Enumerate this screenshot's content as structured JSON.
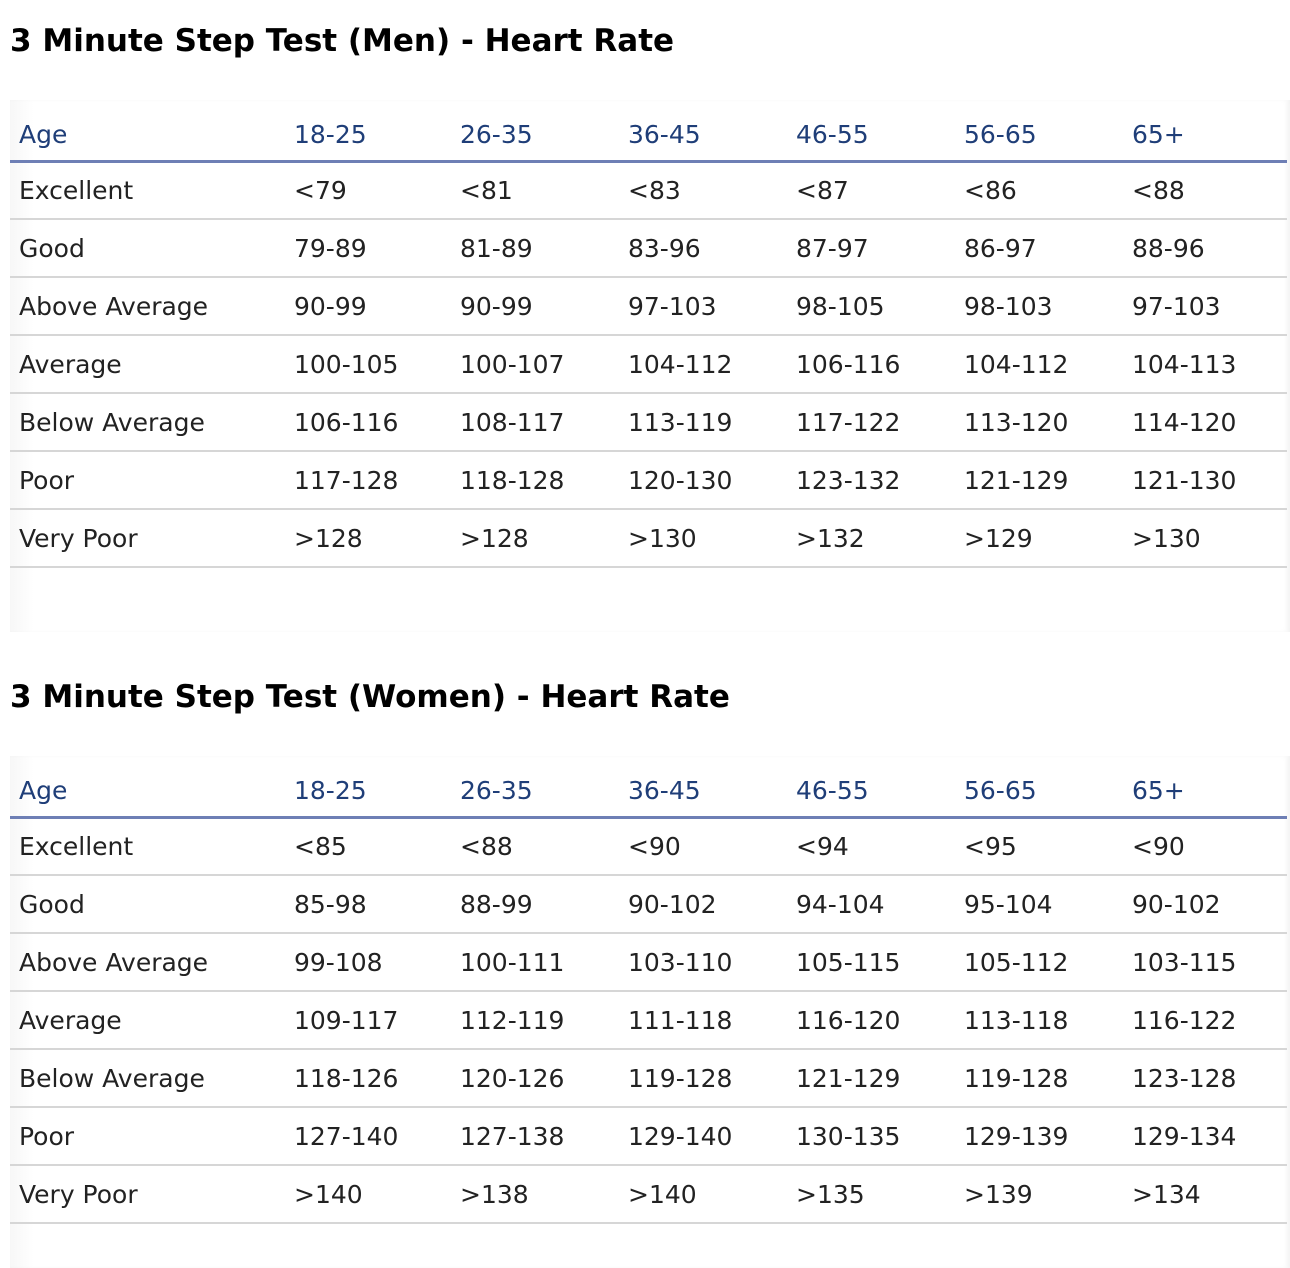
{
  "men": {
    "title": "3 Minute Step Test (Men) - Heart Rate",
    "headers": [
      "Age",
      "18-25",
      "26-35",
      "36-45",
      "46-55",
      "56-65",
      "65+"
    ],
    "rows": [
      [
        "Excellent",
        "<79",
        "<81",
        "<83",
        "<87",
        "<86",
        "<88"
      ],
      [
        "Good",
        "79-89",
        "81-89",
        "83-96",
        "87-97",
        "86-97",
        "88-96"
      ],
      [
        "Above Average",
        "90-99",
        "90-99",
        "97-103",
        "98-105",
        "98-103",
        "97-103"
      ],
      [
        "Average",
        "100-105",
        "100-107",
        "104-112",
        "106-116",
        "104-112",
        "104-113"
      ],
      [
        "Below Average",
        "106-116",
        "108-117",
        "113-119",
        "117-122",
        "113-120",
        "114-120"
      ],
      [
        "Poor",
        "117-128",
        "118-128",
        "120-130",
        "123-132",
        "121-129",
        "121-130"
      ],
      [
        "Very Poor",
        ">128",
        ">128",
        ">130",
        ">132",
        ">129",
        ">130"
      ]
    ]
  },
  "women": {
    "title": "3 Minute Step Test (Women) - Heart Rate",
    "headers": [
      "Age",
      "18-25",
      "26-35",
      "36-45",
      "46-55",
      "56-65",
      "65+"
    ],
    "rows": [
      [
        "Excellent",
        "<85",
        "<88",
        "<90",
        "<94",
        "<95",
        "<90"
      ],
      [
        "Good",
        "85-98",
        "88-99",
        "90-102",
        "94-104",
        "95-104",
        "90-102"
      ],
      [
        "Above Average",
        "99-108",
        "100-111",
        "103-110",
        "105-115",
        "105-112",
        "103-115"
      ],
      [
        "Average",
        "109-117",
        "112-119",
        "111-118",
        "116-120",
        "113-118",
        "116-122"
      ],
      [
        "Below Average",
        "118-126",
        "120-126",
        "119-128",
        "121-129",
        "119-128",
        "123-128"
      ],
      [
        "Poor",
        "127-140",
        "127-138",
        "129-140",
        "130-135",
        "129-139",
        "129-134"
      ],
      [
        "Very Poor",
        ">140",
        ">138",
        ">140",
        ">135",
        ">139",
        ">134"
      ]
    ]
  },
  "colors": {
    "header_text": "#1f3e78",
    "header_rule": "#6e7fb5",
    "row_rule": "#d6d6d6",
    "body_text": "#222222",
    "title_text": "#000000"
  }
}
